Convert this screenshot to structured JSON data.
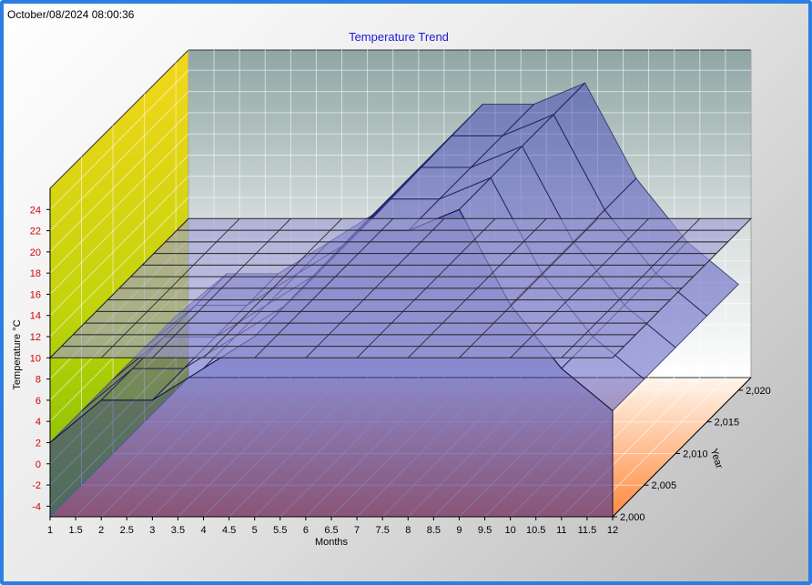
{
  "timestamp": "October/08/2024 08:00:36",
  "chart_data": {
    "type": "surface3d",
    "title": "Temperature Trend",
    "xlabel": "Months",
    "ylabel": "Temperature °C",
    "zlabel": "Year",
    "x_ticks": [
      "1",
      "1.5",
      "2",
      "2.5",
      "3",
      "3.5",
      "4",
      "4.5",
      "5",
      "5.5",
      "6",
      "6.5",
      "7",
      "7.5",
      "8",
      "8.5",
      "9",
      "9.5",
      "10",
      "10.5",
      "11",
      "11.5",
      "12"
    ],
    "y_ticks": [
      "-4",
      "-2",
      "0",
      "2",
      "4",
      "6",
      "8",
      "10",
      "12",
      "14",
      "16",
      "18",
      "20",
      "22",
      "24"
    ],
    "z_ticks": [
      "2,000",
      "2,005",
      "2,010",
      "2,015",
      "2,020"
    ],
    "xlim": [
      1,
      12
    ],
    "ylim": [
      -5,
      26
    ],
    "zlim": [
      2000,
      2022
    ],
    "years": [
      2000,
      2005,
      2010,
      2015,
      2020
    ],
    "months": [
      1,
      2,
      3,
      4,
      5,
      6,
      7,
      8,
      9,
      10,
      11,
      12
    ],
    "temperature_surface": [
      [
        2,
        6,
        6,
        9,
        12,
        17,
        22,
        22,
        24,
        15,
        9,
        5
      ],
      [
        2,
        6,
        6,
        9,
        12,
        17,
        22,
        22,
        24,
        15,
        9,
        5
      ],
      [
        2,
        6,
        6,
        9,
        12,
        17,
        22,
        22,
        24,
        15,
        9,
        5
      ],
      [
        2,
        6,
        6,
        9,
        12,
        17,
        22,
        22,
        24,
        15,
        9,
        5
      ],
      [
        2,
        6,
        6,
        9,
        12,
        17,
        22,
        22,
        24,
        15,
        9,
        5
      ]
    ],
    "reference_plane": {
      "value": 10
    },
    "grid": true
  }
}
